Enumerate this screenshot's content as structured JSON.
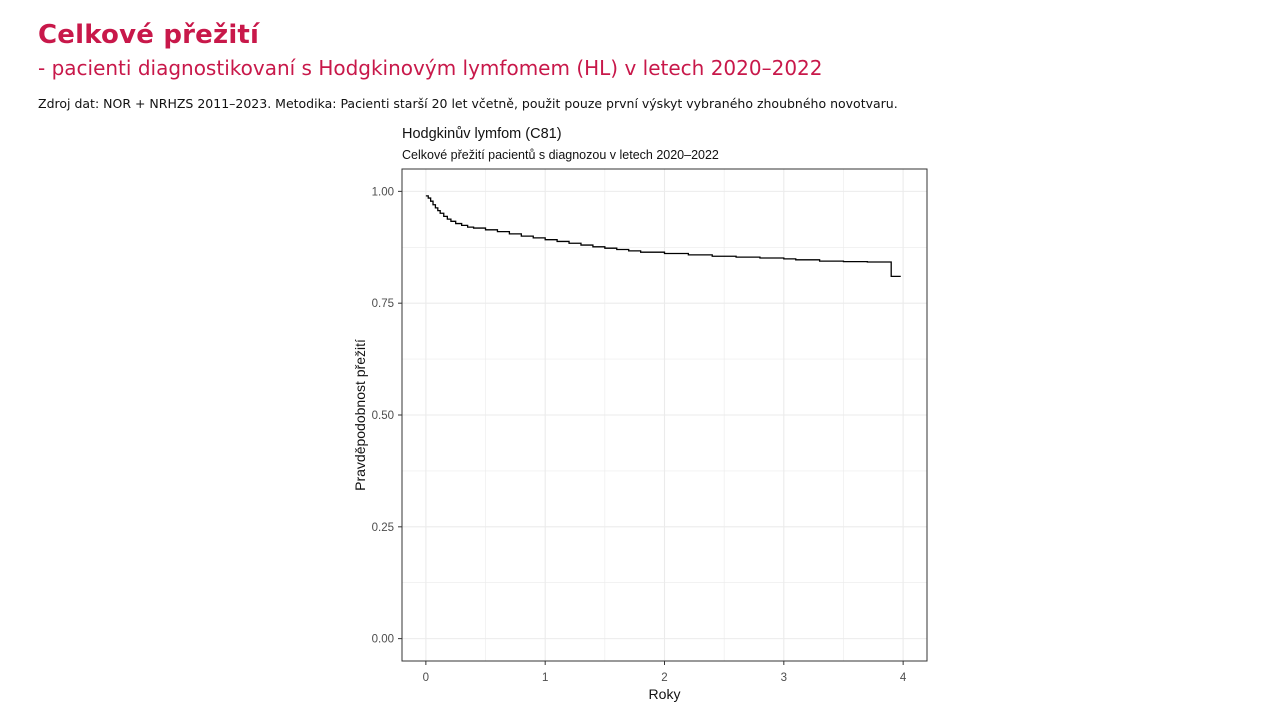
{
  "slide": {
    "title": "Celkové přežití",
    "subtitle": "- pacienti diagnostikovaní s Hodgkinovým lymfomem (HL) v letech 2020–2022",
    "source": "Zdroj dat: NOR + NRHZS 2011–2023. Metodika: Pacienti starší 20 let včetně, použit pouze první výskyt vybraného zhoubného novotvaru."
  },
  "colors": {
    "accent": "#c8184a",
    "line": "#000000",
    "grid": "#ebebeb",
    "panel_border": "#333333",
    "tick_text": "#4d4d4d"
  },
  "chart_data": {
    "type": "line",
    "step": true,
    "title": "Hodgkinův lymfom (C81)",
    "subtitle": "Celkové přežití pacientů s diagnozou v letech 2020–2022",
    "xlabel": "Roky",
    "ylabel": "Pravděpodobnost přežití",
    "xlim": [
      -0.2,
      4.2
    ],
    "ylim": [
      -0.05,
      1.05
    ],
    "x_ticks": [
      0,
      1,
      2,
      3,
      4
    ],
    "x_tick_labels": [
      "0",
      "1",
      "2",
      "3",
      "4"
    ],
    "y_ticks": [
      0,
      0.25,
      0.5,
      0.75,
      1
    ],
    "y_tick_labels": [
      "0.00",
      "0.25",
      "0.50",
      "0.75",
      "1.00"
    ],
    "grid": true,
    "legend": "none",
    "series": [
      {
        "x": [
          0,
          0.02,
          0.04,
          0.06,
          0.08,
          0.1,
          0.12,
          0.15,
          0.18,
          0.21,
          0.25,
          0.3,
          0.35,
          0.4,
          0.5,
          0.6,
          0.7,
          0.8,
          0.9,
          1.0,
          1.1,
          1.2,
          1.3,
          1.4,
          1.5,
          1.6,
          1.7,
          1.8,
          2.0,
          2.2,
          2.4,
          2.6,
          2.8,
          3.0,
          3.1,
          3.3,
          3.5,
          3.7,
          3.9,
          3.98
        ],
        "y": [
          0.99,
          0.985,
          0.978,
          0.97,
          0.963,
          0.957,
          0.951,
          0.944,
          0.938,
          0.933,
          0.928,
          0.924,
          0.92,
          0.918,
          0.914,
          0.91,
          0.905,
          0.9,
          0.896,
          0.892,
          0.888,
          0.884,
          0.88,
          0.876,
          0.873,
          0.87,
          0.867,
          0.864,
          0.861,
          0.858,
          0.855,
          0.853,
          0.851,
          0.849,
          0.847,
          0.844,
          0.843,
          0.842,
          0.81,
          0.81
        ]
      }
    ]
  }
}
